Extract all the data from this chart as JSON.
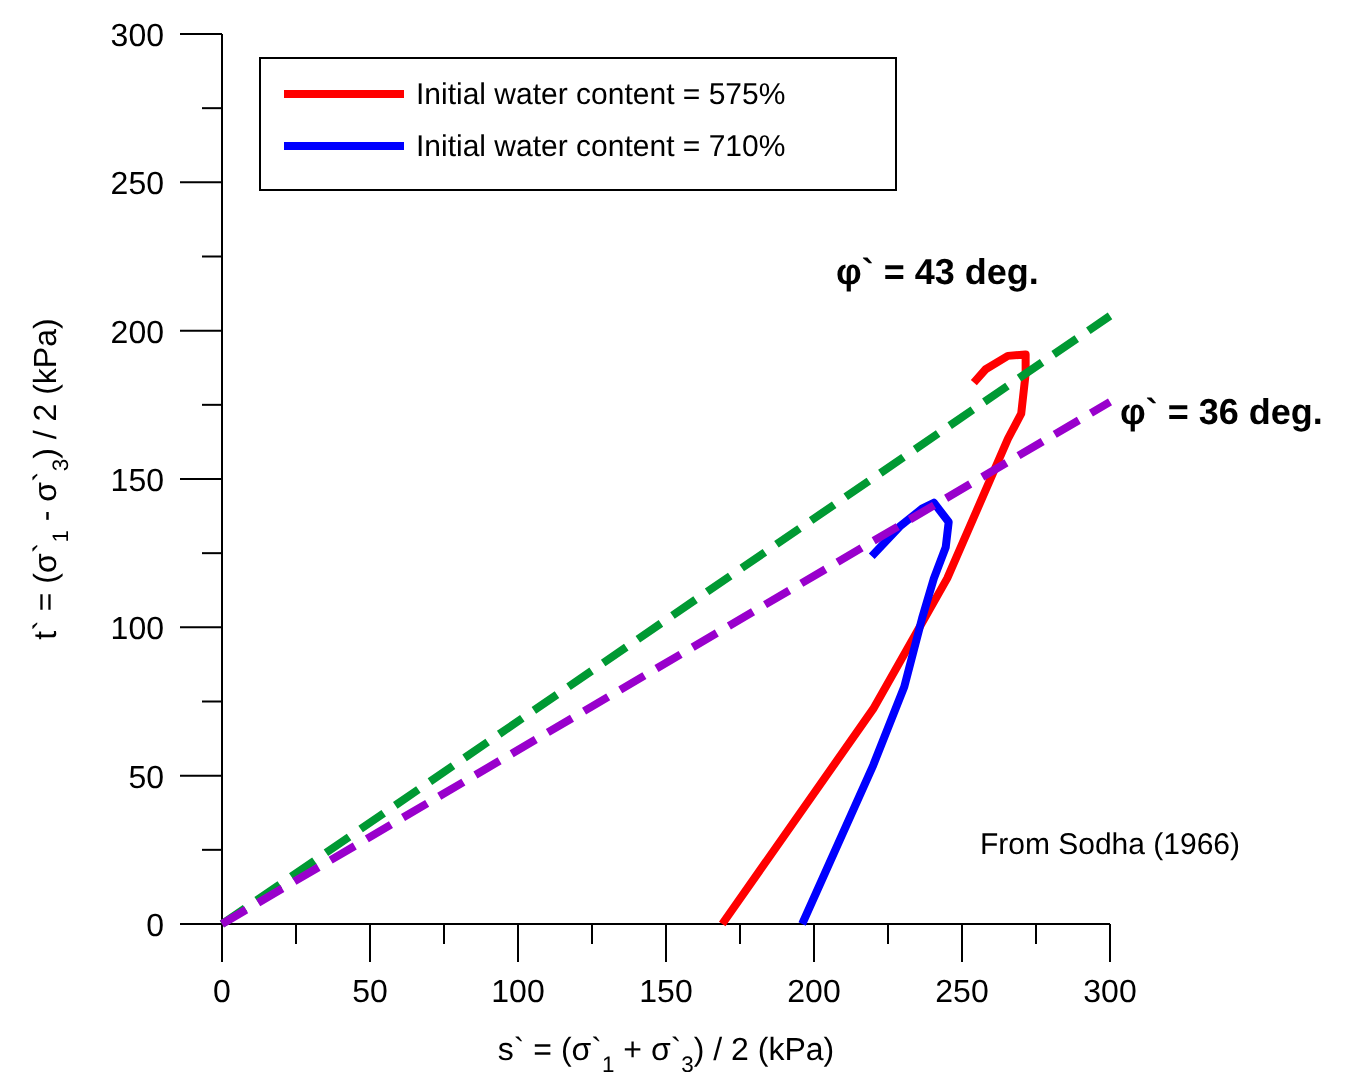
{
  "chart_data": {
    "type": "line",
    "xlabel": "s` = (σ`$_{1}$ + σ`$_{3}$) / 2 (kPa)",
    "ylabel": "t` = (σ`$_{1}$ - σ`$_{3}$) / 2 (kPa)",
    "xlim": [
      0,
      300
    ],
    "ylim": [
      0,
      300
    ],
    "xticks": [
      0,
      {
        "value": 25,
        "label": null
      },
      50,
      {
        "value": 75,
        "label": null
      },
      100,
      {
        "value": 125,
        "label": null
      },
      150,
      {
        "value": 175,
        "label": null
      },
      200,
      {
        "value": 225,
        "label": null
      },
      250,
      {
        "value": 275,
        "label": null
      },
      300
    ],
    "yticks": [
      0,
      {
        "value": 25,
        "label": null
      },
      50,
      {
        "value": 75,
        "label": null
      },
      100,
      {
        "value": 125,
        "label": null
      },
      150,
      {
        "value": 175,
        "label": null
      },
      200,
      {
        "value": 225,
        "label": null
      },
      250,
      {
        "value": 275,
        "label": null
      },
      300
    ],
    "grid": false,
    "legend": "top",
    "marker": "none",
    "series": [
      {
        "name": "Initial water content = 575%",
        "color": "#ff0000",
        "line_style": "solid",
        "x": [
          169,
          220,
          245,
          265.5,
          270,
          271.5,
          271.5,
          265.5,
          258,
          254
        ],
        "values": [
          0,
          72.5,
          116.5,
          163.5,
          172,
          185.5,
          192,
          191.5,
          187,
          182.5
        ]
      },
      {
        "name": "Initial water content = 710%",
        "color": "#0000ff",
        "line_style": "solid",
        "x": [
          196,
          220,
          230.5,
          236.5,
          240.5,
          244.5,
          245.5,
          240.5,
          236.5,
          229,
          219.5
        ],
        "values": [
          0,
          53.5,
          80,
          103,
          116.5,
          127,
          135.5,
          142,
          140,
          134,
          124
        ]
      },
      {
        "color": "#009933",
        "line_style": "dashed",
        "x": [
          0,
          300
        ],
        "values": [
          0,
          205
        ]
      },
      {
        "color": "#9900cc",
        "line_style": "dashed",
        "x": [
          0,
          300
        ],
        "values": [
          0,
          176
        ]
      }
    ],
    "annotations": [
      "φ` = 43 deg.",
      "φ` = 36 deg.",
      "From Sodha (1966)"
    ]
  }
}
